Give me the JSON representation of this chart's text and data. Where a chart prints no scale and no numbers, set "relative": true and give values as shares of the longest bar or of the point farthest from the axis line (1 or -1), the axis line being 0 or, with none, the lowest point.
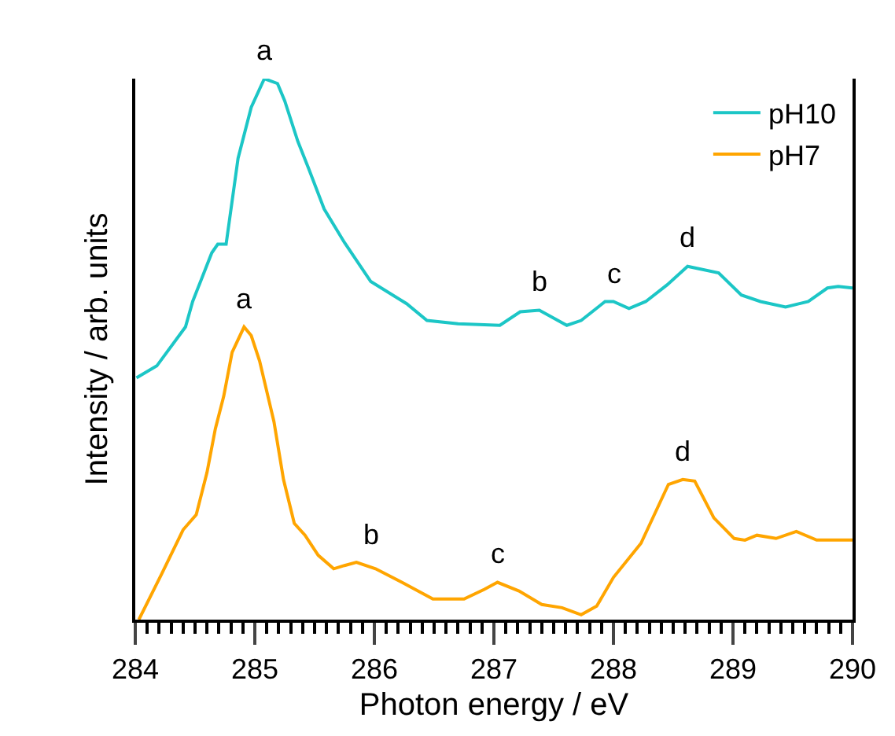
{
  "chart_data": {
    "type": "line",
    "relative": true,
    "xlabel": "Photon energy / eV",
    "ylabel": "Intensity / arb. units",
    "xlim": [
      284,
      290
    ],
    "xticks": [
      284,
      285,
      286,
      287,
      288,
      289,
      290
    ],
    "grid": false,
    "legend": "top right",
    "marker": "none",
    "line_style": "solid",
    "series": [
      {
        "name": "pH10",
        "color": "#1cc6c6",
        "x": [
          284.01,
          284.18,
          284.42,
          284.48,
          284.64,
          284.69,
          284.76,
          284.86,
          284.97,
          285.08,
          285.19,
          285.25,
          285.36,
          285.45,
          285.58,
          285.75,
          285.97,
          286.27,
          286.44,
          286.7,
          287.05,
          287.22,
          287.38,
          287.61,
          287.73,
          287.93,
          288.0,
          288.13,
          288.27,
          288.45,
          288.62,
          288.88,
          289.07,
          289.23,
          289.44,
          289.63,
          289.79,
          289.88,
          290.0
        ],
        "values": [
          0.447,
          0.469,
          0.541,
          0.588,
          0.678,
          0.694,
          0.694,
          0.853,
          0.947,
          1.0,
          0.991,
          0.959,
          0.884,
          0.834,
          0.759,
          0.697,
          0.625,
          0.584,
          0.553,
          0.547,
          0.544,
          0.569,
          0.572,
          0.544,
          0.553,
          0.588,
          0.588,
          0.575,
          0.588,
          0.619,
          0.653,
          0.641,
          0.6,
          0.588,
          0.578,
          0.588,
          0.613,
          0.616,
          0.613
        ]
      },
      {
        "name": "pH7",
        "color": "#ffa500",
        "x": [
          284.03,
          284.22,
          284.4,
          284.51,
          284.6,
          284.67,
          284.74,
          284.81,
          284.91,
          284.97,
          285.04,
          285.16,
          285.24,
          285.33,
          285.42,
          285.53,
          285.66,
          285.75,
          285.85,
          286.01,
          286.23,
          286.49,
          286.75,
          286.92,
          287.03,
          287.21,
          287.4,
          287.57,
          287.73,
          287.86,
          288.0,
          288.23,
          288.46,
          288.58,
          288.68,
          288.84,
          289.01,
          289.1,
          289.2,
          289.36,
          289.53,
          289.7,
          290.0
        ],
        "values": [
          0,
          0.084,
          0.166,
          0.194,
          0.272,
          0.353,
          0.413,
          0.494,
          0.541,
          0.525,
          0.478,
          0.366,
          0.259,
          0.178,
          0.156,
          0.119,
          0.094,
          0.1,
          0.106,
          0.094,
          0.069,
          0.038,
          0.038,
          0.056,
          0.069,
          0.053,
          0.028,
          0.022,
          0.009,
          0.025,
          0.078,
          0.141,
          0.25,
          0.259,
          0.256,
          0.188,
          0.15,
          0.147,
          0.156,
          0.15,
          0.163,
          0.147,
          0.147
        ]
      }
    ],
    "annotations": [
      {
        "text": "a",
        "x": 285.08,
        "y": 1.0
      },
      {
        "text": "b",
        "x": 287.38,
        "y": 0.572
      },
      {
        "text": "c",
        "x": 288.0,
        "y": 0.588
      },
      {
        "text": "d",
        "x": 288.62,
        "y": 0.653
      },
      {
        "text": "a",
        "x": 284.91,
        "y": 0.541
      },
      {
        "text": "b",
        "x": 285.97,
        "y": 0.106
      },
      {
        "text": "c",
        "x": 287.03,
        "y": 0.069
      },
      {
        "text": "d",
        "x": 288.58,
        "y": 0.259
      }
    ]
  }
}
